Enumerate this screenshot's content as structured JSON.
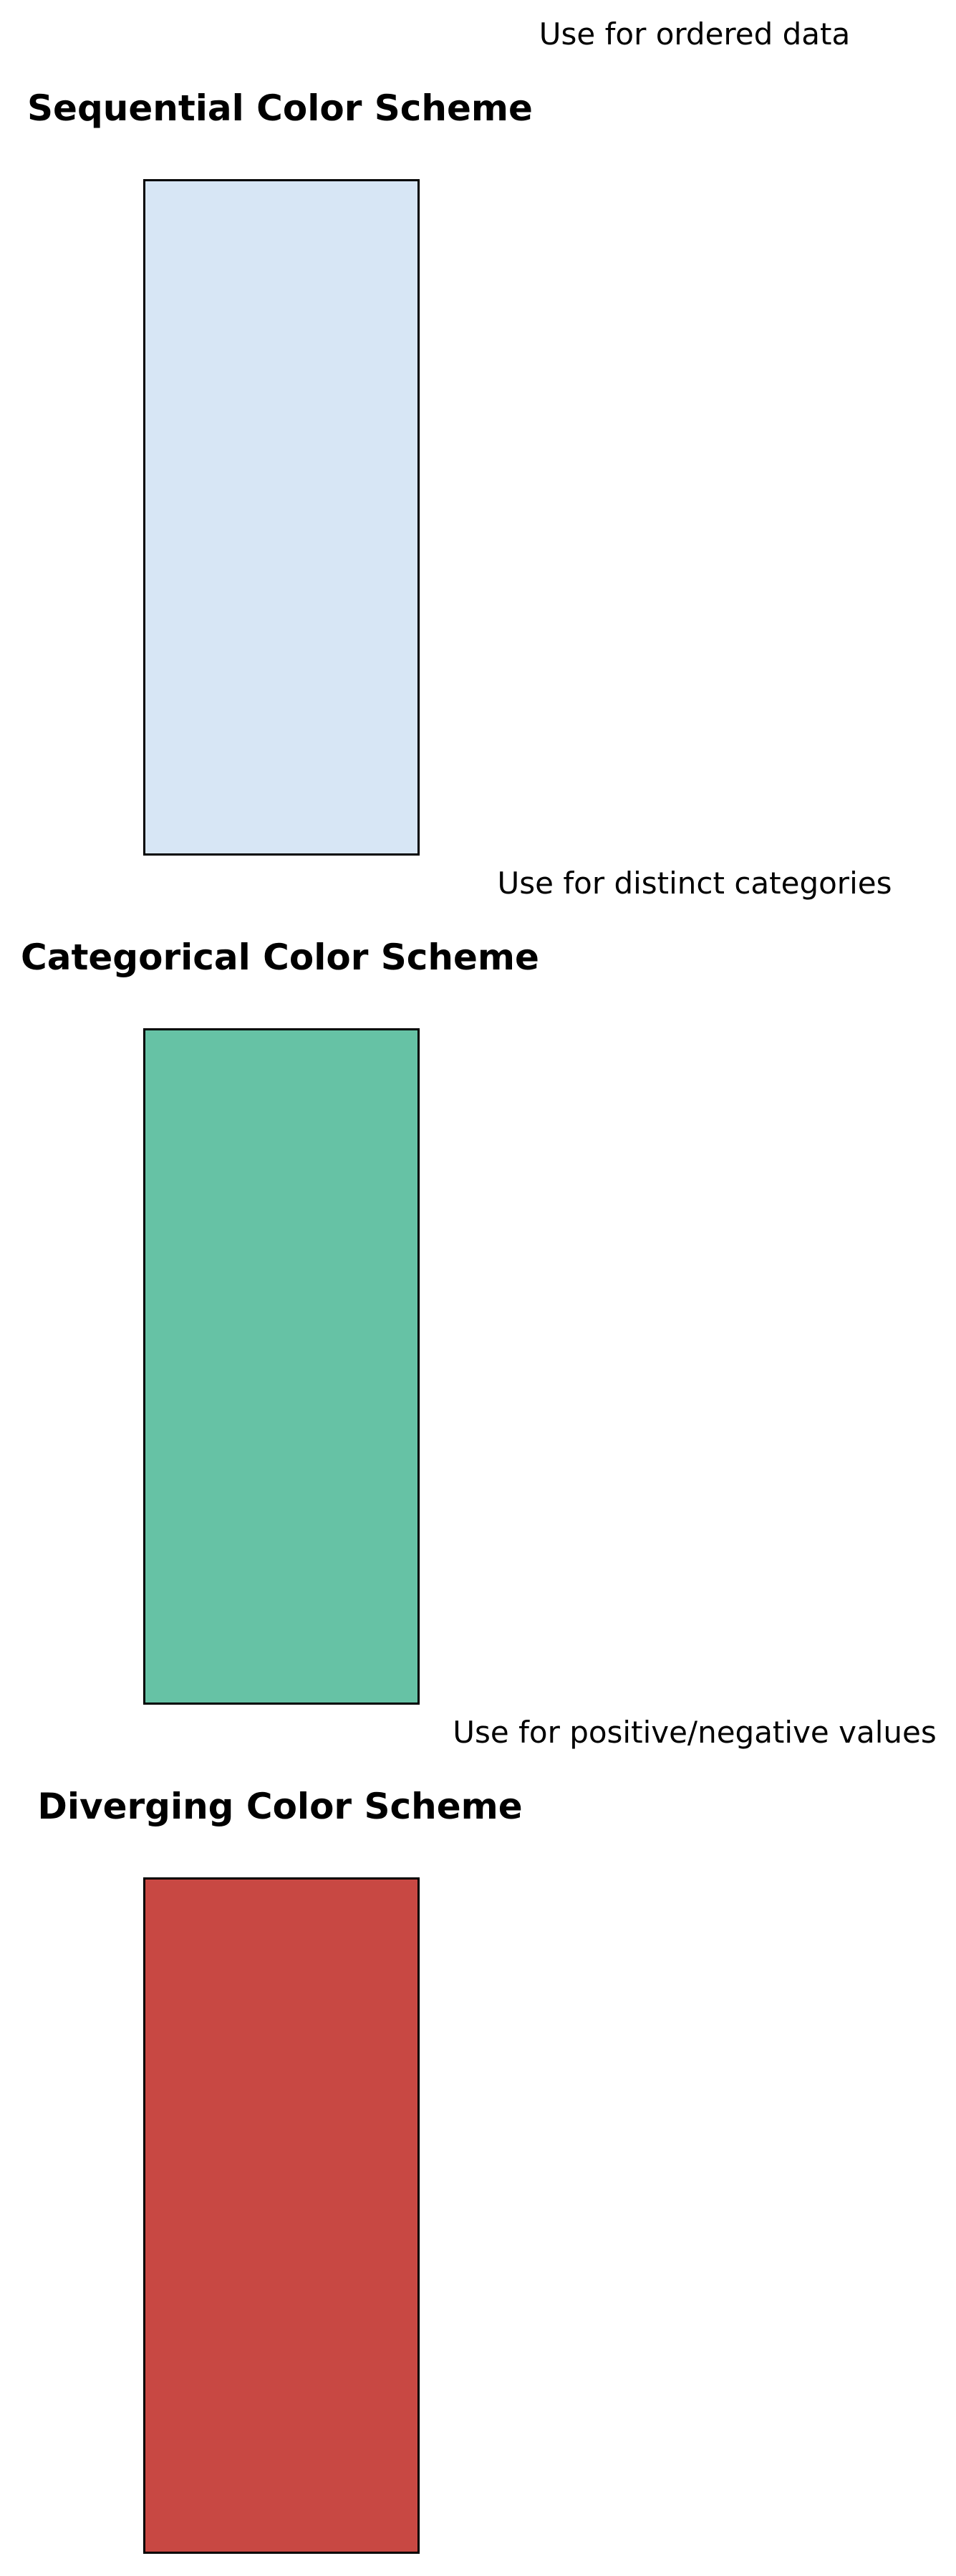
{
  "panels": [
    {
      "note": "Use for ordered data",
      "title": "Sequential Color Scheme",
      "color": "#d7e6f5"
    },
    {
      "note": "Use for distinct categories",
      "title": "Categorical Color Scheme",
      "color": "#66c2a5"
    },
    {
      "note": "Use for positive/negative values",
      "title": "Diverging Color Scheme",
      "color": "#c84843"
    }
  ]
}
